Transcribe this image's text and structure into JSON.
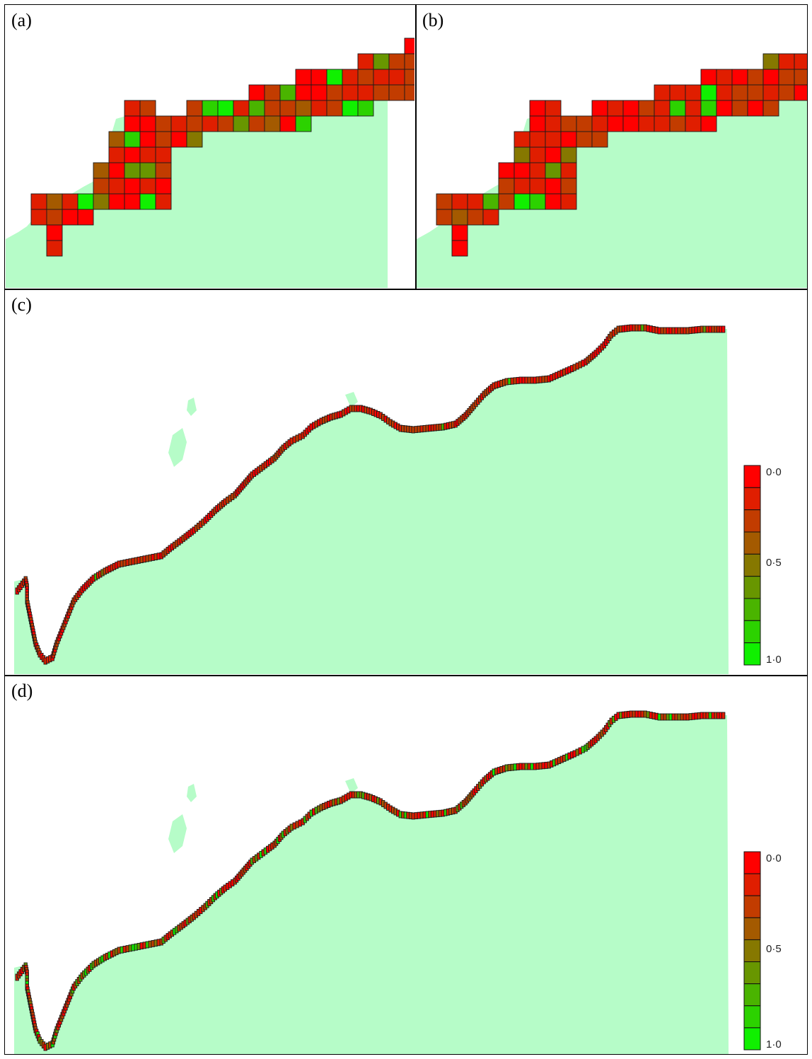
{
  "colors": {
    "land": "#b6fcc8",
    "cell_stroke": "#1a1a1a",
    "scale": [
      "#ff0000",
      "#e01e00",
      "#c23c00",
      "#a45a00",
      "#867800",
      "#689600",
      "#4ab400",
      "#2cd200",
      "#10f000"
    ]
  },
  "panels": {
    "a": {
      "label": "(a)"
    },
    "b": {
      "label": "(b)"
    },
    "c": {
      "label": "(c)"
    },
    "d": {
      "label": "(d)"
    }
  },
  "legend": {
    "top_label": "0·0",
    "mid_label": "0·5",
    "bottom_label": "1·0",
    "range": [
      0.0,
      1.0
    ]
  }
}
